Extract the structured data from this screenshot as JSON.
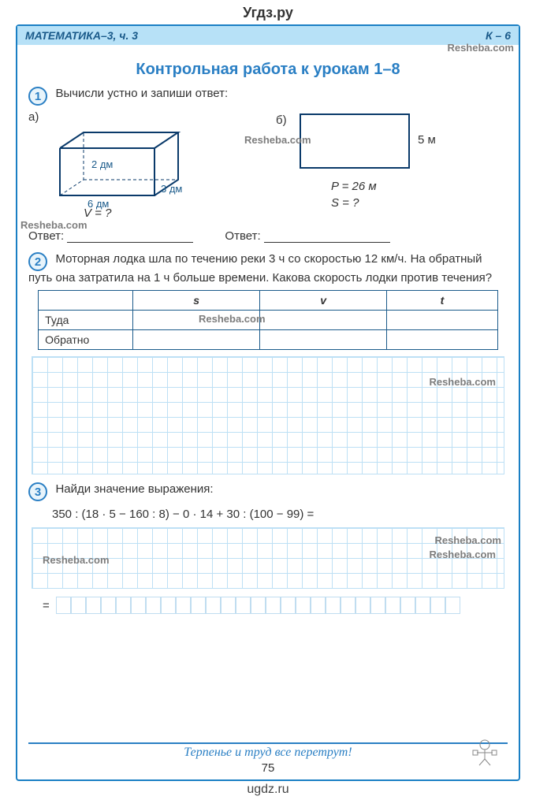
{
  "site_top": "Угдз.ру",
  "site_bottom": "ugdz.ru",
  "header": {
    "left": "МАТЕМАТИКА–3, ч. 3",
    "right": "К – 6"
  },
  "watermark": "Resheba.com",
  "title": "Контрольная работа к урокам 1–8",
  "task1": {
    "num": "1",
    "text": "Вычисли устно и запиши ответ:",
    "a_label": "а)",
    "a_dims": {
      "depth": "2 дм",
      "width": "3 дм",
      "length": "6 дм"
    },
    "a_eq": "V = ?",
    "b_label": "б)",
    "b_height": "5 м",
    "b_p": "P = 26 м",
    "b_s": "S = ?",
    "answer_label": "Ответ:"
  },
  "task2": {
    "num": "2",
    "text": "Моторная лодка шла по течению реки 3 ч со скоростью 12 км/ч. На обратный путь она затратила на 1 ч больше времени. Какова скорость лодки против течения?",
    "table": {
      "headers": [
        "",
        "s",
        "v",
        "t"
      ],
      "rows": [
        [
          "Туда",
          "",
          "",
          ""
        ],
        [
          "Обратно",
          "",
          "",
          ""
        ]
      ]
    }
  },
  "task3": {
    "num": "3",
    "text": "Найди значение выражения:",
    "expr": "350 : (18 · 5 − 160 : 8) − 0 · 14 + 30 : (100 − 99) =",
    "eq_sign": "="
  },
  "footer": {
    "quote": "Терпенье и труд все перетрут!",
    "page": "75"
  },
  "colors": {
    "border": "#1a7fc4",
    "header_bg": "#b7e1f7",
    "title": "#2a7fc4",
    "grid": "#bde0f5",
    "box_stroke": "#0a3a6a"
  },
  "answer_box_count": 27
}
